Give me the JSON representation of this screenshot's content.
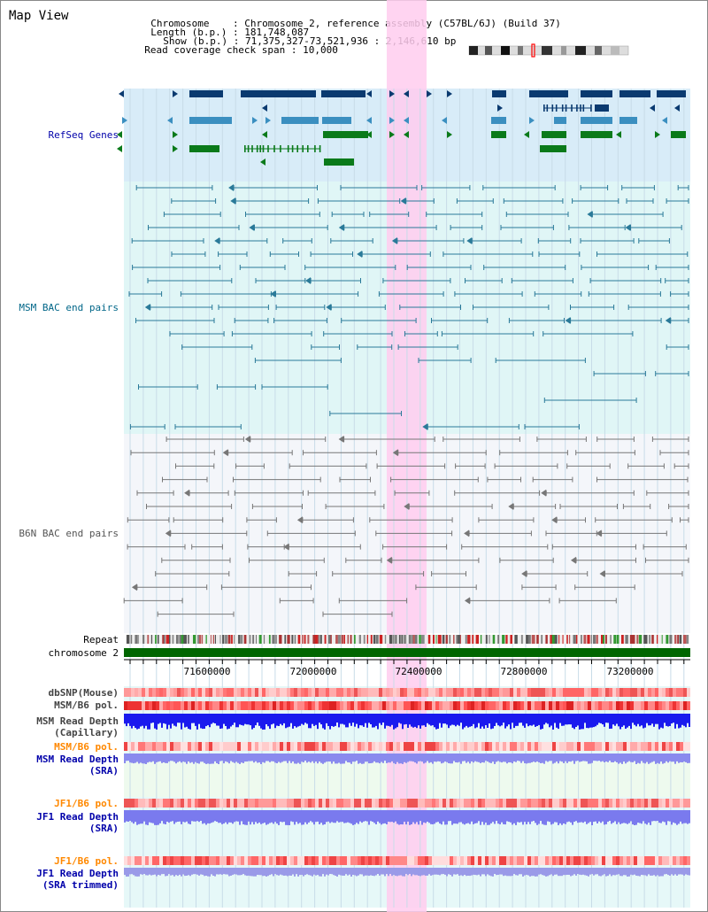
{
  "title": "Map View",
  "header": {
    "chromosome_key": "Chromosome",
    "chromosome_value": "Chromosome 2, reference assembly (C57BL/6J) (Build 37)",
    "length_key": "Length (b.p.)",
    "length_value": "181,748,087",
    "show_key": "Show (b.p.)",
    "show_value": "71,375,327-73,521,936 : 2,146,610 bp",
    "coverage_key": "Read coverage check span",
    "coverage_value": "10,000"
  },
  "tracks": {
    "refseq": "RefSeq Genes",
    "msm_bac": "MSM BAC end pairs",
    "b6n_bac": "B6N BAC end pairs",
    "repeat": "Repeat",
    "chromosome": "chromosome 2",
    "dbsnp": "dbSNP(Mouse)",
    "msm_b6_pol_1": "MSM/B6 pol.",
    "msm_depth_cap_1": "MSM Read Depth",
    "msm_depth_cap_2": "(Capillary)",
    "msm_b6_pol_2": "MSM/B6 pol.",
    "msm_depth_sra_1": "MSM Read Depth",
    "msm_depth_sra_2": "(SRA)",
    "jf1_b6_pol_1": "JF1/B6 pol.",
    "jf1_depth_sra_1": "JF1 Read Depth",
    "jf1_depth_sra_2": "(SRA)",
    "jf1_b6_pol_2": "JF1/B6 pol.",
    "jf1_depth_trim_1": "JF1 Read Depth",
    "jf1_depth_trim_2": "(SRA trimmed)"
  },
  "axis": {
    "ticks": [
      "71600000",
      "72000000",
      "72400000",
      "72800000",
      "73200000"
    ]
  },
  "colors": {
    "refseq_dark": "#0a3a70",
    "refseq_mid": "#3b8fc0",
    "refseq_green": "#0a7a1a",
    "msm_line": "#2a7a99",
    "b6n_line": "#777777",
    "chromosome_bar": "#006600",
    "highlight": "#ffccee"
  }
}
